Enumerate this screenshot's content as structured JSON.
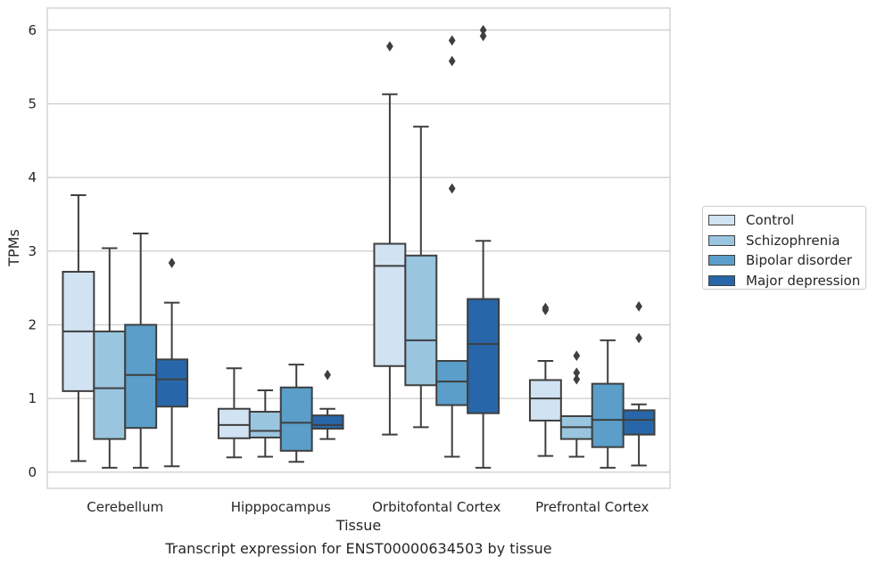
{
  "caption": "Transcript expression for ENST00000634503 by tissue",
  "chart_data": {
    "type": "box",
    "title": "",
    "xlabel": "Tissue",
    "ylabel": "TPMs",
    "ylim": [
      -0.22,
      6.3
    ],
    "yticks": [
      0,
      1,
      2,
      3,
      4,
      5,
      6
    ],
    "grid": "horizontal",
    "legend_position": "right",
    "categories": [
      "Cerebellum",
      "Hipppocampus",
      "Orbitofontal Cortex",
      "Prefrontal Cortex"
    ],
    "series": [
      {
        "name": "Control",
        "color": "#d1e2f2",
        "boxes": [
          {
            "whislo": 0.15,
            "q1": 1.1,
            "med": 1.91,
            "q3": 2.72,
            "whishi": 3.76,
            "fliers": []
          },
          {
            "whislo": 0.2,
            "q1": 0.46,
            "med": 0.64,
            "q3": 0.86,
            "whishi": 1.41,
            "fliers": []
          },
          {
            "whislo": 0.51,
            "q1": 1.44,
            "med": 2.8,
            "q3": 3.1,
            "whishi": 5.13,
            "fliers": [
              5.78
            ]
          },
          {
            "whislo": 0.22,
            "q1": 0.7,
            "med": 1.0,
            "q3": 1.25,
            "whishi": 1.51,
            "fliers": [
              2.2,
              2.23
            ]
          }
        ]
      },
      {
        "name": "Schizophrenia",
        "color": "#9ac5df",
        "boxes": [
          {
            "whislo": 0.06,
            "q1": 0.45,
            "med": 1.14,
            "q3": 1.91,
            "whishi": 3.04,
            "fliers": []
          },
          {
            "whislo": 0.21,
            "q1": 0.47,
            "med": 0.56,
            "q3": 0.82,
            "whishi": 1.11,
            "fliers": []
          },
          {
            "whislo": 0.61,
            "q1": 1.18,
            "med": 1.79,
            "q3": 2.94,
            "whishi": 4.69,
            "fliers": []
          },
          {
            "whislo": 0.21,
            "q1": 0.45,
            "med": 0.61,
            "q3": 0.76,
            "whishi": 0.76,
            "fliers": [
              1.26,
              1.35,
              1.58
            ]
          }
        ]
      },
      {
        "name": "Bipolar disorder",
        "color": "#5a9ec9",
        "boxes": [
          {
            "whislo": 0.06,
            "q1": 0.6,
            "med": 1.32,
            "q3": 2.0,
            "whishi": 3.24,
            "fliers": []
          },
          {
            "whislo": 0.14,
            "q1": 0.29,
            "med": 0.67,
            "q3": 1.15,
            "whishi": 1.46,
            "fliers": []
          },
          {
            "whislo": 0.21,
            "q1": 0.91,
            "med": 1.23,
            "q3": 1.51,
            "whishi": 1.51,
            "fliers": [
              3.85,
              5.58,
              5.86
            ]
          },
          {
            "whislo": 0.06,
            "q1": 0.34,
            "med": 0.71,
            "q3": 1.2,
            "whishi": 1.79,
            "fliers": []
          }
        ]
      },
      {
        "name": "Major depression",
        "color": "#2767a9",
        "boxes": [
          {
            "whislo": 0.08,
            "q1": 0.89,
            "med": 1.26,
            "q3": 1.53,
            "whishi": 2.3,
            "fliers": [
              2.84
            ]
          },
          {
            "whislo": 0.45,
            "q1": 0.59,
            "med": 0.64,
            "q3": 0.77,
            "whishi": 0.86,
            "fliers": [
              1.32
            ]
          },
          {
            "whislo": 0.06,
            "q1": 0.8,
            "med": 1.74,
            "q3": 2.35,
            "whishi": 3.14,
            "fliers": [
              5.92,
              6.0
            ]
          },
          {
            "whislo": 0.09,
            "q1": 0.51,
            "med": 0.71,
            "q3": 0.84,
            "whishi": 0.92,
            "fliers": [
              1.82,
              2.25
            ]
          }
        ]
      }
    ]
  }
}
